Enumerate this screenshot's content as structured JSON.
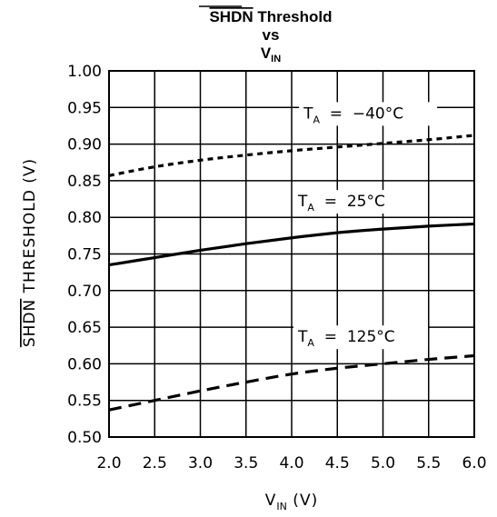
{
  "chart_data": {
    "type": "line",
    "title": {
      "line1": "SHDN Threshold",
      "line1_overbar": "SHDN",
      "line1_rest": " Threshold",
      "line2": "vs",
      "line3_main": "V",
      "line3_sub": "IN"
    },
    "xlabel": {
      "main": "V",
      "sub": "IN",
      "rest": " (V)"
    },
    "ylabel": {
      "overbar": "SHDN",
      "rest": " THRESHOLD (V)"
    },
    "xlim": [
      2.0,
      6.0
    ],
    "ylim": [
      0.5,
      1.0
    ],
    "x_ticks": [
      "2.0",
      "2.5",
      "3.0",
      "3.5",
      "4.0",
      "4.5",
      "5.0",
      "5.5",
      "6.0"
    ],
    "y_ticks": [
      "0.50",
      "0.55",
      "0.60",
      "0.65",
      "0.70",
      "0.75",
      "0.80",
      "0.85",
      "0.90",
      "0.95",
      "1.00"
    ],
    "grid": true,
    "series": [
      {
        "name": "T_A = -40°C",
        "label_main": "T",
        "label_sub": "A",
        "label_rest": " = −40°C",
        "style": "dotted",
        "x": [
          2.0,
          2.5,
          3.0,
          3.5,
          4.0,
          4.5,
          5.0,
          5.5,
          6.0
        ],
        "y": [
          0.857,
          0.869,
          0.878,
          0.885,
          0.891,
          0.896,
          0.901,
          0.906,
          0.912
        ]
      },
      {
        "name": "T_A = 25°C",
        "label_main": "T",
        "label_sub": "A",
        "label_rest": " = 25°C",
        "style": "solid",
        "x": [
          2.0,
          2.5,
          3.0,
          3.5,
          4.0,
          4.5,
          5.0,
          5.5,
          6.0
        ],
        "y": [
          0.735,
          0.745,
          0.755,
          0.764,
          0.772,
          0.779,
          0.784,
          0.788,
          0.791
        ]
      },
      {
        "name": "T_A = 125°C",
        "label_main": "T",
        "label_sub": "A",
        "label_rest": " = 125°C",
        "style": "dashed",
        "x": [
          2.0,
          2.5,
          3.0,
          3.5,
          4.0,
          4.5,
          5.0,
          5.5,
          6.0
        ],
        "y": [
          0.537,
          0.55,
          0.563,
          0.575,
          0.586,
          0.594,
          0.6,
          0.606,
          0.611
        ]
      }
    ]
  }
}
